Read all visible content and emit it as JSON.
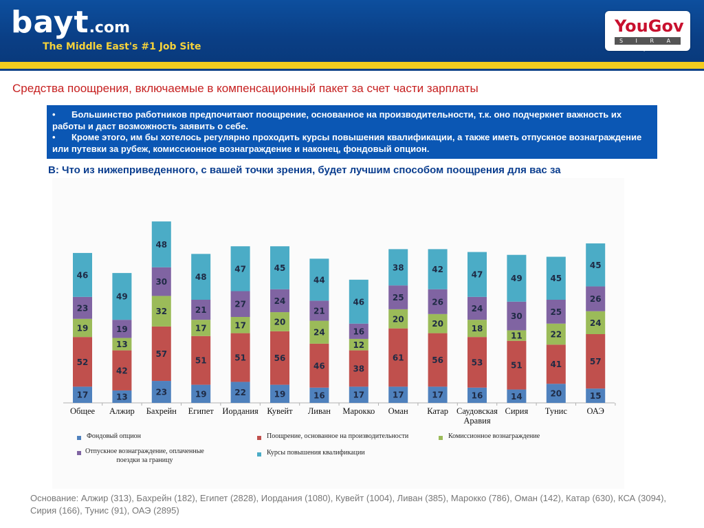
{
  "header": {
    "logo_main": "bayt",
    "logo_suffix": ".com",
    "tagline": "The Middle East's #1 Job Site",
    "partner_logo": "YouGov",
    "partner_sub": "S I R A J"
  },
  "slide": {
    "title": "Средства поощрения, включаемые в компенсационный пакет за счет части зарплаты",
    "bullets": [
      "Большинство работников предпочитают поощрение, основанное на производительности, т.к. оно подчеркнет важность их работы и даст возможность заявить о себе.",
      "Кроме этого, им бы хотелось регулярно проходить курсы повышения квалификации, а также иметь отпускное вознаграждение или путевки за рубеж, комиссионное вознаграждение и наконец, фондовый опцион."
    ],
    "bullet_symbol": "•",
    "question": "В: Что из нижеприведенного, с вашей точки зрения, будет лучшим способом поощрения для вас за",
    "basis": "Основание:  Алжир (313), Бахрейн (182), Египет (2828), Иордания (1080), Кувейт (1004), Ливан (385), Марокко (786), Оман (142), Катар (630),  КСА (3094), Сирия (166), Тунис (91), ОАЭ (2895)"
  },
  "chart_data": {
    "type": "bar",
    "stacked": true,
    "categories": [
      "Общее",
      "Алжир",
      "Бахрейн",
      "Египет",
      "Иордания",
      "Кувейт",
      "Ливан",
      "Марокко",
      "Оман",
      "Катар",
      "Саудовская Аравия",
      "Сирия",
      "Тунис",
      "ОАЭ"
    ],
    "category_lines": [
      [
        "Общее"
      ],
      [
        "Алжир"
      ],
      [
        "Бахрейн"
      ],
      [
        "Египет"
      ],
      [
        "Иордания"
      ],
      [
        "Кувейт"
      ],
      [
        "Ливан"
      ],
      [
        "Марокко"
      ],
      [
        "Оман"
      ],
      [
        "Катар"
      ],
      [
        "Саудовская",
        "Аравия"
      ],
      [
        "Сирия"
      ],
      [
        "Тунис"
      ],
      [
        "ОАЭ"
      ]
    ],
    "series": [
      {
        "name": "Фондовый опцион",
        "color": "#4f81bd",
        "values": [
          17,
          13,
          23,
          19,
          22,
          19,
          16,
          17,
          17,
          17,
          16,
          14,
          20,
          15
        ]
      },
      {
        "name": "Поощрение, основанное на производительности",
        "color": "#c0504d",
        "values": [
          52,
          42,
          57,
          51,
          51,
          56,
          46,
          38,
          61,
          56,
          53,
          51,
          41,
          57
        ]
      },
      {
        "name": "Комиссионное вознаграждение",
        "color": "#9bbb59",
        "values": [
          19,
          13,
          32,
          17,
          17,
          20,
          24,
          12,
          20,
          20,
          18,
          11,
          22,
          24
        ]
      },
      {
        "name": "Отпускное вознаграждение, оплаченные поездки за границу",
        "color": "#8064a2",
        "values": [
          23,
          19,
          30,
          21,
          27,
          24,
          21,
          16,
          25,
          26,
          24,
          30,
          25,
          26
        ]
      },
      {
        "name": "Курсы повышения квалификации",
        "color": "#4bacc6",
        "values": [
          46,
          49,
          48,
          48,
          47,
          45,
          44,
          46,
          38,
          42,
          47,
          49,
          45,
          45
        ]
      }
    ],
    "legend": [
      {
        "label": "Фондовый опцион",
        "color": "#4f81bd"
      },
      {
        "label": "Поощрение, основанное на производительности",
        "color": "#c0504d"
      },
      {
        "label": "Комиссионное вознаграждение",
        "color": "#9bbb59"
      },
      {
        "label_lines": [
          "Отпускное вознаграждение, оплаченные",
          "поездки за границу"
        ],
        "color": "#8064a2"
      },
      {
        "label": "Курсы повышения квалификации",
        "color": "#4bacc6"
      }
    ],
    "data_labels": true,
    "legend_position": "bottom"
  }
}
